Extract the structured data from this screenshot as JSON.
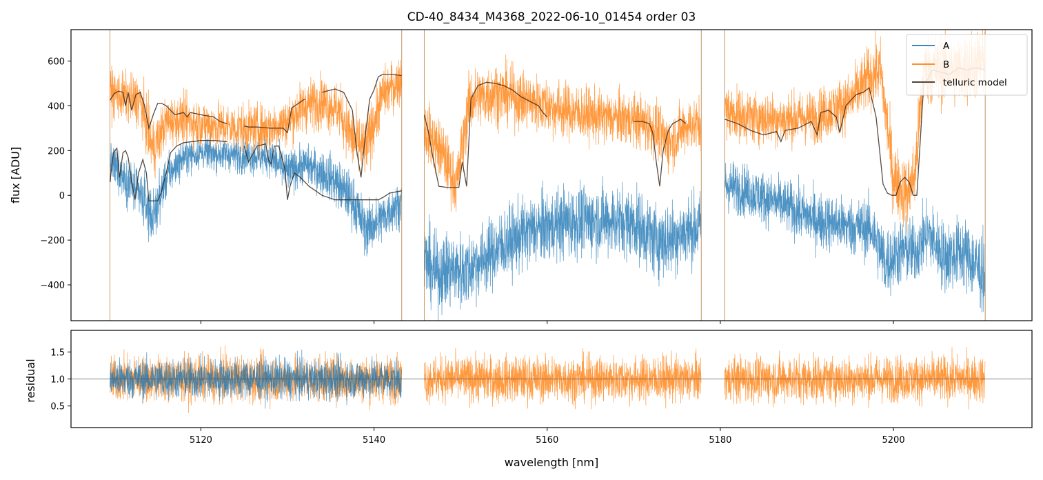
{
  "chart_data": [
    {
      "panel": "flux",
      "type": "line",
      "title": "CD-40_8434_M4368_2022-06-10_01454  order 03",
      "xlabel": "",
      "ylabel": "flux [ADU]",
      "xlim": [
        5105,
        5216
      ],
      "ylim": [
        -560,
        740
      ],
      "x_ticks": [
        5120,
        5140,
        5160,
        5180,
        5200
      ],
      "y_ticks": [
        -400,
        -200,
        0,
        200,
        400,
        600
      ],
      "y_tick_labels": [
        "−400",
        "−200",
        "0",
        "200",
        "400",
        "600"
      ],
      "grid": false,
      "legend_location": "top-right",
      "legend": [
        "A",
        "B",
        "telluric model"
      ],
      "colors": {
        "A": "#1f77b4",
        "B": "#ff7f0e",
        "telluric model": "#3a2a20"
      },
      "segments": [
        [
          5109.5,
          5143.2
        ],
        [
          5145.8,
          5177.8
        ],
        [
          5180.5,
          5210.6
        ]
      ],
      "series": [
        {
          "name": "A",
          "envelope_x": [
            5109.5,
            5111,
            5113,
            5114.5,
            5116,
            5118,
            5120,
            5124,
            5128,
            5130,
            5132,
            5135,
            5137.5,
            5139,
            5140.5,
            5142,
            5143.2,
            5145.8,
            5147,
            5149,
            5150.5,
            5152,
            5155,
            5158,
            5162,
            5166,
            5170,
            5172.5,
            5174,
            5176,
            5177.8,
            5180.5,
            5183,
            5187,
            5191,
            5195,
            5197.5,
            5199,
            5201,
            5202.5,
            5204,
            5206,
            5208,
            5210.6
          ],
          "envelope_mid": [
            150,
            90,
            0,
            -100,
            80,
            170,
            190,
            180,
            170,
            100,
            140,
            80,
            -20,
            -150,
            -120,
            -60,
            -30,
            -280,
            -350,
            -330,
            -340,
            -300,
            -220,
            -160,
            -120,
            -110,
            -120,
            -200,
            -200,
            -160,
            -140,
            50,
            20,
            -40,
            -110,
            -140,
            -150,
            -300,
            -250,
            -250,
            -170,
            -280,
            -250,
            -360
          ],
          "envelope_half": [
            80,
            90,
            110,
            110,
            90,
            70,
            70,
            70,
            80,
            90,
            80,
            100,
            110,
            110,
            110,
            100,
            90,
            160,
            160,
            160,
            160,
            150,
            150,
            150,
            150,
            150,
            150,
            160,
            160,
            150,
            150,
            110,
            110,
            110,
            120,
            120,
            130,
            150,
            140,
            140,
            140,
            150,
            150,
            170
          ]
        },
        {
          "name": "B",
          "envelope_x": [
            5109.5,
            5111,
            5113,
            5114.5,
            5116,
            5118,
            5120,
            5124,
            5128,
            5130,
            5132,
            5134,
            5136,
            5137.5,
            5139,
            5141,
            5143.2,
            5145.8,
            5148,
            5149.5,
            5151,
            5154,
            5158,
            5162,
            5166,
            5170,
            5172.5,
            5174,
            5176,
            5177.8,
            5180.5,
            5183,
            5187,
            5191,
            5195,
            5197,
            5198.5,
            5200,
            5201.5,
            5202.5,
            5203.5,
            5206,
            5208,
            5210.6
          ],
          "envelope_mid": [
            460,
            440,
            420,
            200,
            330,
            340,
            320,
            300,
            300,
            330,
            400,
            420,
            380,
            250,
            200,
            450,
            520,
            300,
            180,
            40,
            420,
            460,
            420,
            380,
            350,
            340,
            300,
            230,
            310,
            320,
            380,
            350,
            340,
            350,
            420,
            520,
            560,
            80,
            0,
            100,
            560,
            560,
            560,
            600
          ],
          "envelope_half": [
            100,
            100,
            110,
            130,
            100,
            100,
            100,
            100,
            100,
            100,
            110,
            110,
            110,
            130,
            130,
            110,
            100,
            120,
            130,
            120,
            130,
            130,
            120,
            120,
            110,
            110,
            120,
            120,
            110,
            110,
            110,
            110,
            110,
            110,
            120,
            130,
            130,
            150,
            150,
            150,
            150,
            150,
            150,
            150
          ]
        },
        {
          "name": "telluric model",
          "component": "A",
          "x": [
            5109.5,
            5109.9,
            5110.3,
            5110.6,
            5111.0,
            5111.3,
            5111.6,
            5112.0,
            5112.4,
            5112.8,
            5113.3,
            5113.7,
            5114.0,
            5114.5,
            5115.0,
            5115.4,
            5116.0,
            5116.5,
            5117.2,
            5118.0,
            5119.0,
            5120.0,
            5121.5,
            5123.0,
            5125.0,
            5125.5,
            5126.5,
            5127.5,
            5127.8,
            5128.1,
            5128.5,
            5129.0,
            5129.7,
            5130.0,
            5130.3,
            5130.8,
            5131.5,
            5132.5,
            5134.0,
            5135.5,
            5136.5,
            5137.0,
            5138.0,
            5139.0,
            5139.5,
            5140.0,
            5140.5,
            5141.0,
            5141.8,
            5143.2
          ],
          "y": [
            60,
            190,
            210,
            80,
            190,
            200,
            170,
            60,
            -20,
            100,
            160,
            100,
            -25,
            -25,
            -25,
            10,
            100,
            190,
            220,
            235,
            240,
            245,
            245,
            240,
            220,
            150,
            220,
            230,
            160,
            140,
            220,
            220,
            120,
            -20,
            40,
            100,
            80,
            40,
            0,
            -20,
            -20,
            -20,
            -20,
            -20,
            -20,
            -20,
            -20,
            -10,
            10,
            20
          ]
        },
        {
          "name": "telluric model",
          "component": "B",
          "x": [
            5109.5,
            5110.0,
            5110.5,
            5111.0,
            5111.3,
            5111.6,
            5112.0,
            5112.5,
            5113.0,
            5113.5,
            5114.0,
            5114.5,
            5115.0,
            5115.5,
            5116.0,
            5117.0,
            5118.0,
            5118.4,
            5118.8,
            5120.0,
            5121.5,
            5122.2,
            5123.0,
            5125.0,
            5125.5,
            5126.5,
            5128.0,
            5129.5,
            5130.0,
            5130.5,
            5132.0,
            5134.0,
            5135.5,
            5136.5,
            5137.5,
            5138.0,
            5138.5,
            5139.0,
            5139.5,
            5140.0,
            5140.5,
            5141.0,
            5142.0,
            5143.2,
            5145.8,
            5146.3,
            5146.8,
            5147.5,
            5148.5,
            5149.3,
            5149.8,
            5150.2,
            5150.7,
            5151.2,
            5152.0,
            5153.0,
            5154.0,
            5155.0,
            5156.0,
            5157.0,
            5158.0,
            5159.0,
            5159.5,
            5160.0,
            5162.0,
            5164.0,
            5166.0,
            5168.0,
            5170.0,
            5171.0,
            5171.8,
            5172.2,
            5172.6,
            5173.0,
            5173.4,
            5174.0,
            5174.5,
            5175.0,
            5175.4,
            5176.0,
            5177.8,
            5180.5,
            5182.0,
            5183.5,
            5185.0,
            5186.5,
            5187.0,
            5187.5,
            5189.0,
            5190.5,
            5191.2,
            5191.6,
            5192.5,
            5193.4,
            5193.8,
            5194.5,
            5195.2,
            5195.7,
            5196.5,
            5197.2,
            5198.0,
            5198.4,
            5198.8,
            5199.3,
            5199.8,
            5200.3,
            5200.8,
            5201.3,
            5201.8,
            5202.3,
            5202.7,
            5203.0,
            5203.5,
            5204.0,
            5204.5,
            5205.5,
            5206.5,
            5207.5,
            5208.5,
            5209.5,
            5210.6
          ],
          "y": [
            425,
            455,
            465,
            460,
            400,
            460,
            380,
            450,
            460,
            400,
            300,
            360,
            410,
            410,
            400,
            360,
            370,
            350,
            370,
            360,
            350,
            330,
            320,
            310,
            305,
            305,
            300,
            300,
            280,
            390,
            430,
            460,
            475,
            460,
            380,
            200,
            80,
            270,
            430,
            470,
            530,
            540,
            540,
            535,
            360,
            280,
            170,
            40,
            35,
            35,
            35,
            150,
            40,
            430,
            490,
            505,
            500,
            490,
            470,
            440,
            420,
            400,
            370,
            350,
            330,
            320,
            320,
            322,
            330,
            330,
            320,
            280,
            150,
            40,
            200,
            290,
            320,
            330,
            340,
            320,
            315,
            340,
            320,
            290,
            270,
            285,
            240,
            290,
            300,
            330,
            270,
            370,
            380,
            350,
            280,
            400,
            430,
            450,
            460,
            480,
            350,
            200,
            50,
            10,
            0,
            0,
            60,
            80,
            60,
            0,
            0,
            180,
            500,
            520,
            560,
            550,
            540,
            570,
            560,
            570,
            560
          ]
        }
      ]
    },
    {
      "panel": "residual",
      "type": "line",
      "title": "",
      "xlabel": "wavelength [nm]",
      "ylabel": "residual",
      "xlim": [
        5105,
        5216
      ],
      "ylim": [
        0.1,
        1.9
      ],
      "x_ticks": [
        5120,
        5140,
        5160,
        5180,
        5200
      ],
      "y_ticks": [
        0.5,
        1.0,
        1.5
      ],
      "y_tick_labels": [
        "0.5",
        "1.0",
        "1.5"
      ],
      "reference_line": 1.0,
      "grid": false,
      "series": [
        {
          "name": "A",
          "segments": [
            [
              5109.5,
              5143.2
            ]
          ],
          "mid": 1.0,
          "half_spread": 0.35
        },
        {
          "name": "B",
          "segments": [
            [
              5109.5,
              5143.2
            ],
            [
              5145.8,
              5177.8
            ],
            [
              5180.5,
              5210.6
            ]
          ],
          "mid": 1.0,
          "half_spread": 0.4
        }
      ]
    }
  ]
}
